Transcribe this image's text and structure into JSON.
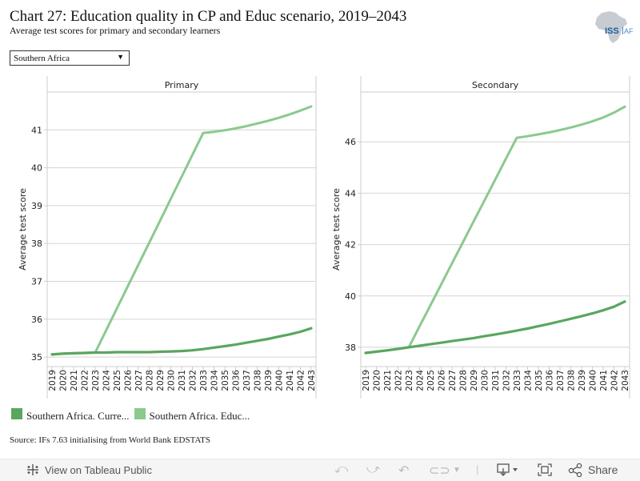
{
  "header": {
    "title": "Chart 27: Education quality in CP and Educ scenario, 2019–2043",
    "subtitle": "Average test scores for primary and secondary learners",
    "logo_text_iss": "ISS",
    "logo_text_af": "AF",
    "logo_icon": "africa-map-logo"
  },
  "filter": {
    "selected": "Southern Africa",
    "arrow_icon": "caret-down-icon"
  },
  "legend": {
    "items": [
      {
        "label": "Southern Africa. Curre...",
        "color": "#59a65f"
      },
      {
        "label": "Southern Africa. Educ...",
        "color": "#8bc98f"
      }
    ]
  },
  "source": "Source: IFs 7.63 initialising from World Bank EDSTATS",
  "toolbar": {
    "view_label": "View on Tableau Public",
    "share_label": "Share",
    "icons": [
      "tableau-logo-icon",
      "undo-icon",
      "redo-icon",
      "revert-icon",
      "refresh-icon",
      "download-icon",
      "fullscreen-icon",
      "share-icon"
    ]
  },
  "chart_data": [
    {
      "type": "line",
      "title": "Primary",
      "xlabel": "",
      "ylabel": "Average test score",
      "x": [
        2019,
        2020,
        2021,
        2022,
        2023,
        2024,
        2025,
        2026,
        2027,
        2028,
        2029,
        2030,
        2031,
        2032,
        2033,
        2034,
        2035,
        2036,
        2037,
        2038,
        2039,
        2040,
        2041,
        2042,
        2043
      ],
      "yticks": [
        35,
        36,
        37,
        38,
        39,
        40,
        41
      ],
      "ylim": [
        34.75,
        42.0
      ],
      "grid": true,
      "legend_position": "bottom-left",
      "series": [
        {
          "name": "Southern Africa. Current Path",
          "color": "#59a65f",
          "values": [
            35.07,
            35.09,
            35.1,
            35.11,
            35.12,
            35.12,
            35.13,
            35.13,
            35.13,
            35.13,
            35.14,
            35.15,
            35.16,
            35.18,
            35.21,
            35.25,
            35.29,
            35.33,
            35.38,
            35.43,
            35.48,
            35.54,
            35.6,
            35.67,
            35.76
          ]
        },
        {
          "name": "Southern Africa. Educ scenario",
          "color": "#8bc98f",
          "values": [
            35.07,
            35.09,
            35.1,
            35.11,
            35.12,
            35.7,
            36.28,
            36.86,
            37.44,
            38.02,
            38.6,
            39.18,
            39.76,
            40.34,
            40.92,
            40.95,
            40.99,
            41.04,
            41.1,
            41.17,
            41.24,
            41.32,
            41.41,
            41.51,
            41.62
          ]
        }
      ]
    },
    {
      "type": "line",
      "title": "Secondary",
      "xlabel": "",
      "ylabel": "Average test score",
      "x": [
        2019,
        2020,
        2021,
        2022,
        2023,
        2024,
        2025,
        2026,
        2027,
        2028,
        2029,
        2030,
        2031,
        2032,
        2033,
        2034,
        2035,
        2036,
        2037,
        2038,
        2039,
        2040,
        2041,
        2042,
        2043
      ],
      "yticks": [
        38,
        40,
        42,
        44,
        46
      ],
      "ylim": [
        37.25,
        47.94
      ],
      "grid": true,
      "legend_position": "bottom-left",
      "series": [
        {
          "name": "Southern Africa. Current Path",
          "color": "#59a65f",
          "values": [
            37.78,
            37.83,
            37.88,
            37.94,
            38.0,
            38.06,
            38.12,
            38.18,
            38.24,
            38.3,
            38.36,
            38.43,
            38.5,
            38.57,
            38.65,
            38.73,
            38.82,
            38.91,
            39.01,
            39.11,
            39.21,
            39.32,
            39.44,
            39.58,
            39.78
          ]
        },
        {
          "name": "Southern Africa. Educ scenario",
          "color": "#8bc98f",
          "values": [
            37.78,
            37.83,
            37.88,
            37.94,
            38.0,
            38.82,
            39.63,
            40.45,
            41.27,
            42.08,
            42.9,
            43.71,
            44.53,
            45.35,
            46.16,
            46.22,
            46.29,
            46.37,
            46.46,
            46.56,
            46.67,
            46.8,
            46.95,
            47.14,
            47.37
          ]
        }
      ]
    }
  ]
}
